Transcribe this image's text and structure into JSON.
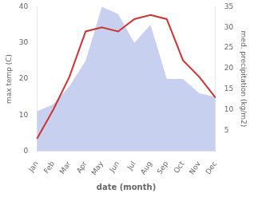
{
  "chart_data": {
    "type": "line",
    "xlabel": "date (month)",
    "ylabel": "max temp (C)",
    "y2label": "med. precipitation (kg/m2)",
    "categories": [
      "Jan",
      "Feb",
      "Mar",
      "Apr",
      "May",
      "Jun",
      "Jul",
      "Aug",
      "Sep",
      "Oct",
      "Nov",
      "Dec"
    ],
    "series": [
      {
        "type": "area",
        "color": "#c8d0f0",
        "values": [
          11,
          13,
          18,
          25,
          40,
          38,
          30,
          35,
          20,
          20,
          16,
          15
        ]
      },
      {
        "type": "line",
        "color": "#cc3333",
        "axis": "y2",
        "values": [
          3,
          10,
          18,
          29,
          30,
          29,
          32,
          33,
          32,
          22,
          18,
          13
        ]
      }
    ],
    "ylim": [
      0,
      40
    ],
    "yticks": [
      0,
      10,
      20,
      30,
      40
    ],
    "y2lim": [
      0,
      35
    ],
    "y2ticks": [
      5,
      10,
      15,
      20,
      25,
      30,
      35
    ],
    "grid": false
  }
}
